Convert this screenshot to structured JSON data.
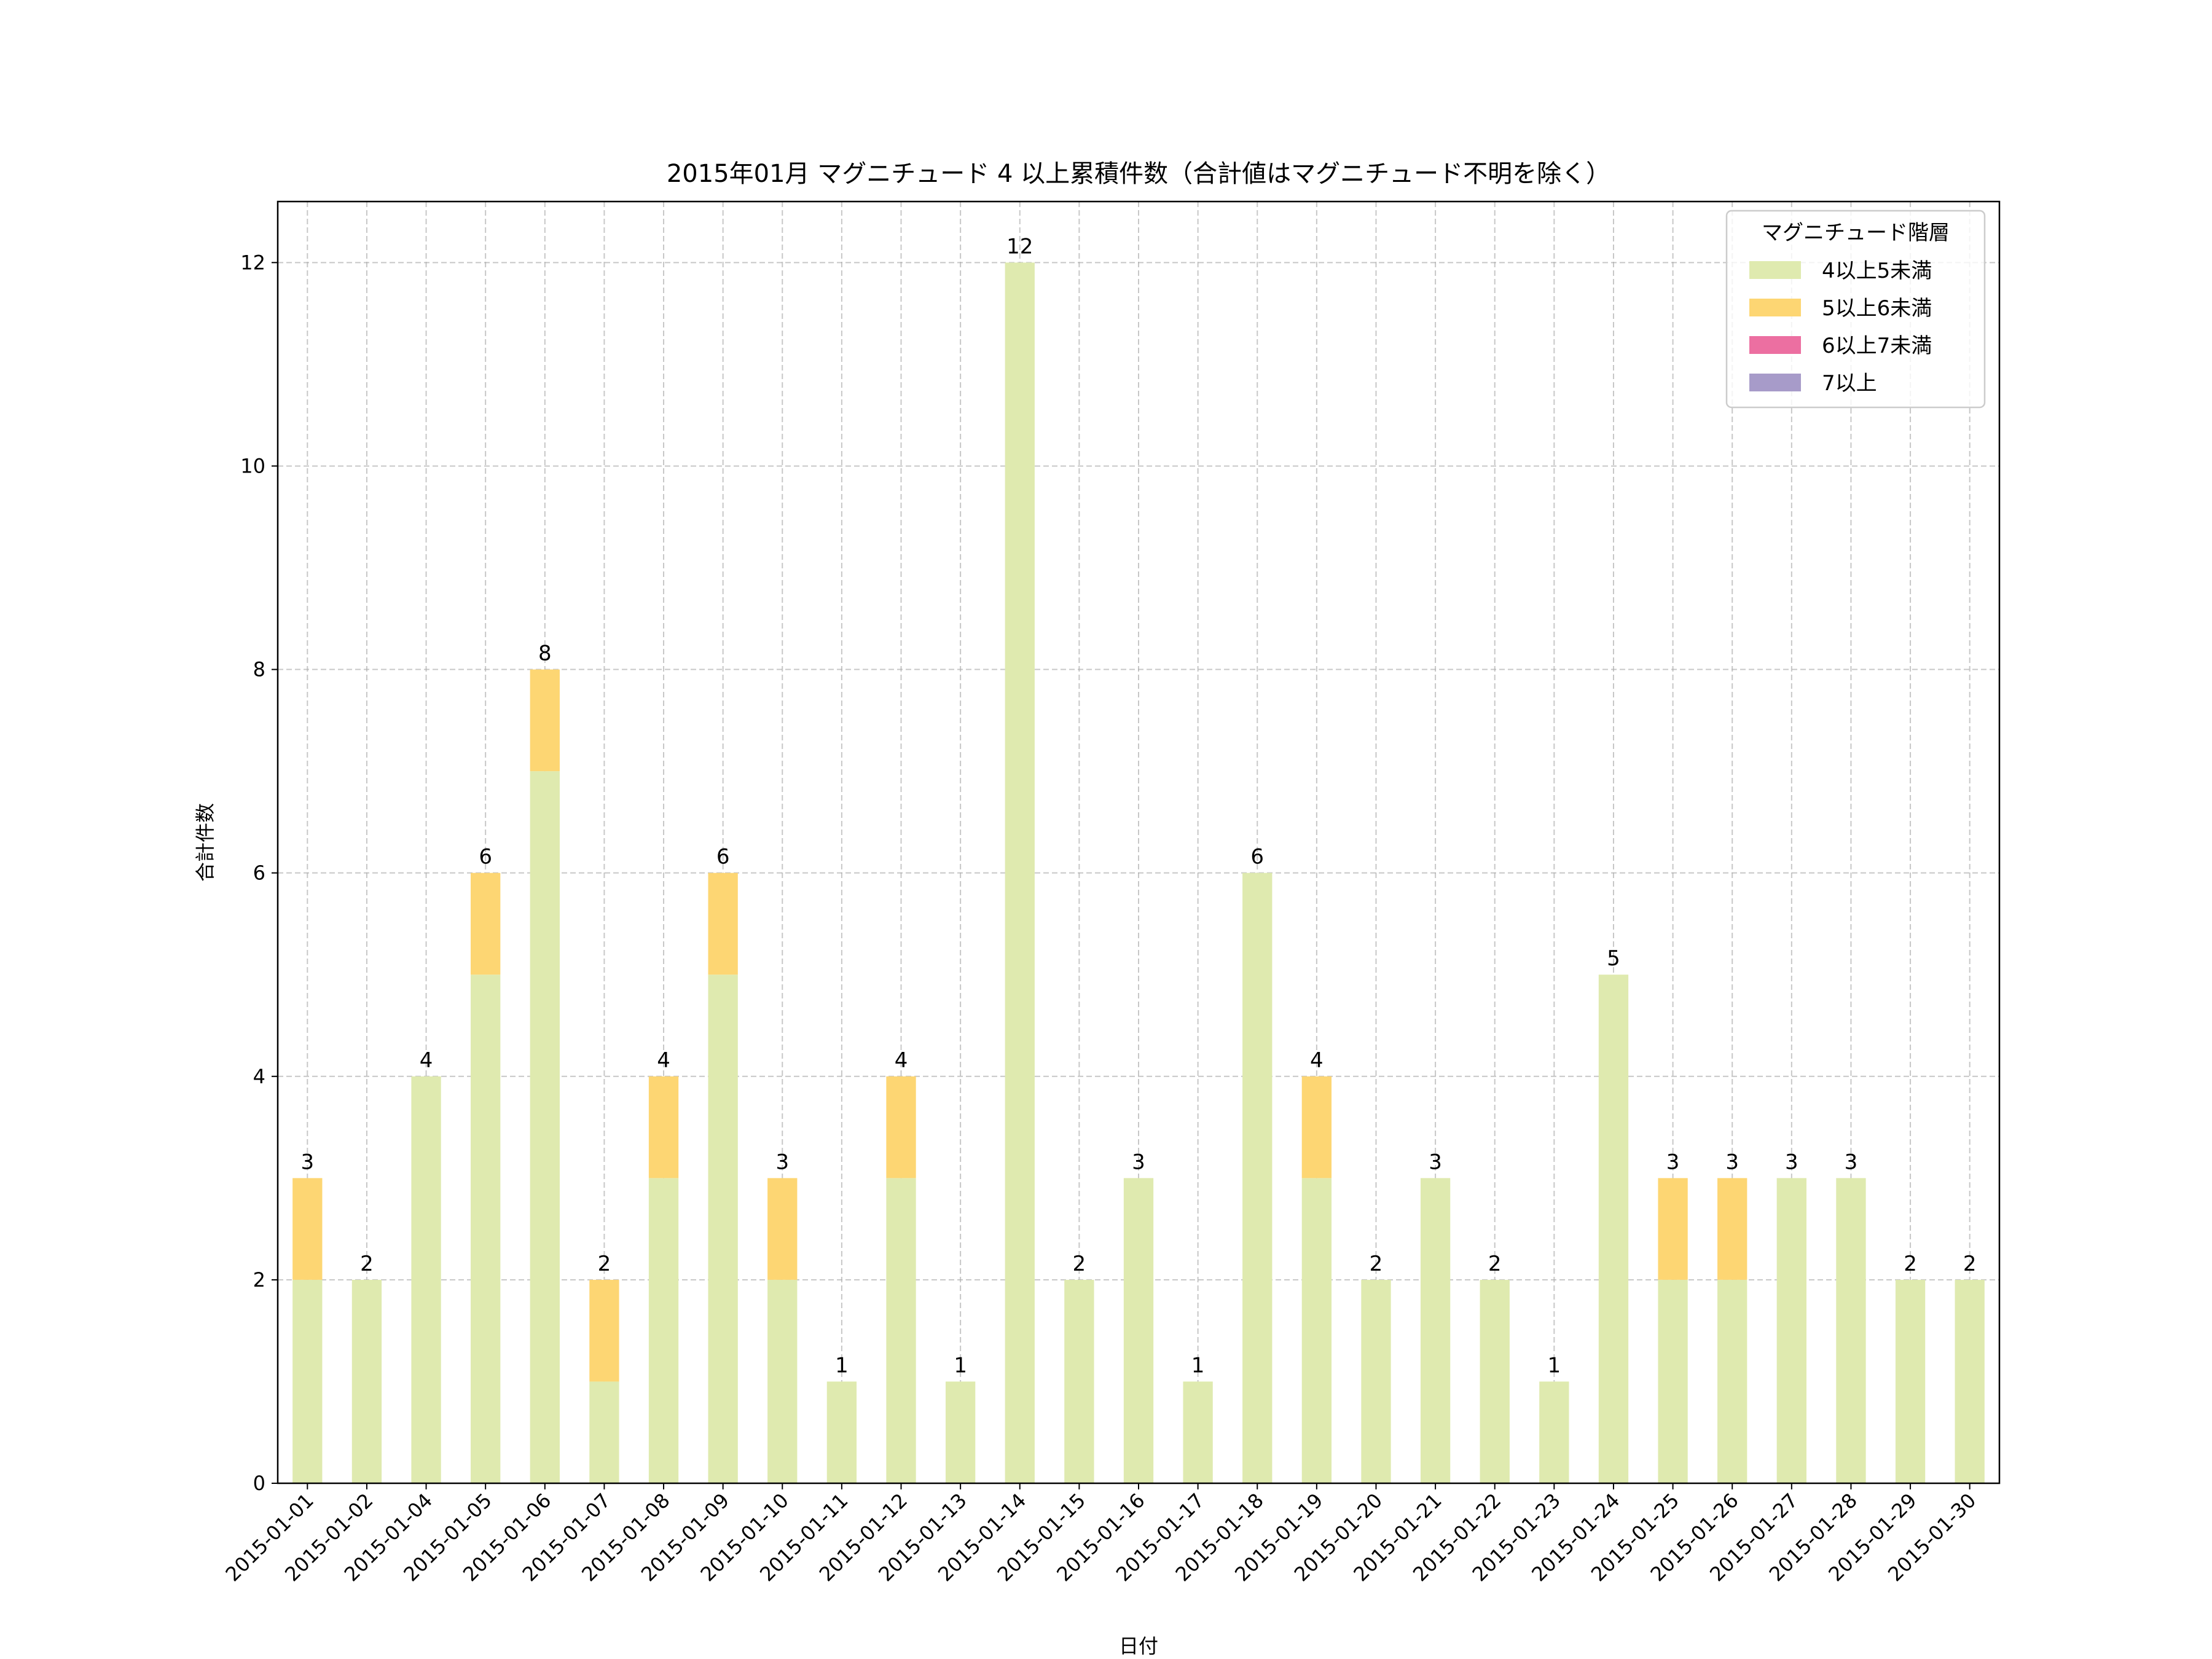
{
  "chart_data": {
    "type": "bar",
    "stacked": true,
    "title": "2015年01月 マグニチュード 4 以上累積件数（合計値はマグニチュード不明を除く）",
    "xlabel": "日付",
    "ylabel": "合計件数",
    "ylim": [
      0,
      12.6
    ],
    "yticks": [
      0,
      2,
      4,
      6,
      8,
      10,
      12
    ],
    "grid": true,
    "legend": {
      "title": "マグニチュード階層",
      "placement": "top-right"
    },
    "categories": [
      "2015-01-01",
      "2015-01-02",
      "2015-01-04",
      "2015-01-05",
      "2015-01-06",
      "2015-01-07",
      "2015-01-08",
      "2015-01-09",
      "2015-01-10",
      "2015-01-11",
      "2015-01-12",
      "2015-01-13",
      "2015-01-14",
      "2015-01-15",
      "2015-01-16",
      "2015-01-17",
      "2015-01-18",
      "2015-01-19",
      "2015-01-20",
      "2015-01-21",
      "2015-01-22",
      "2015-01-23",
      "2015-01-24",
      "2015-01-25",
      "2015-01-26",
      "2015-01-27",
      "2015-01-28",
      "2015-01-29",
      "2015-01-30"
    ],
    "series": [
      {
        "name": "4以上5未満",
        "color": "#dfeaaf",
        "values": [
          2,
          2,
          4,
          5,
          7,
          1,
          3,
          5,
          2,
          1,
          3,
          1,
          12,
          2,
          3,
          1,
          6,
          3,
          2,
          3,
          2,
          1,
          5,
          2,
          2,
          3,
          3,
          2,
          2
        ]
      },
      {
        "name": "5以上6未満",
        "color": "#fdd673",
        "values": [
          1,
          0,
          0,
          1,
          1,
          1,
          1,
          1,
          1,
          0,
          1,
          0,
          0,
          0,
          0,
          0,
          0,
          1,
          0,
          0,
          0,
          0,
          0,
          1,
          1,
          0,
          0,
          0,
          0
        ]
      },
      {
        "name": "6以上7未満",
        "color": "#ec6fa1",
        "values": [
          0,
          0,
          0,
          0,
          0,
          0,
          0,
          0,
          0,
          0,
          0,
          0,
          0,
          0,
          0,
          0,
          0,
          0,
          0,
          0,
          0,
          0,
          0,
          0,
          0,
          0,
          0,
          0,
          0
        ]
      },
      {
        "name": "7以上",
        "color": "#a79bc9",
        "values": [
          0,
          0,
          0,
          0,
          0,
          0,
          0,
          0,
          0,
          0,
          0,
          0,
          0,
          0,
          0,
          0,
          0,
          0,
          0,
          0,
          0,
          0,
          0,
          0,
          0,
          0,
          0,
          0,
          0
        ]
      }
    ],
    "totals": [
      3,
      2,
      4,
      6,
      8,
      2,
      4,
      6,
      3,
      1,
      4,
      1,
      12,
      2,
      3,
      1,
      6,
      4,
      2,
      3,
      2,
      1,
      5,
      3,
      3,
      3,
      3,
      2,
      2
    ]
  }
}
